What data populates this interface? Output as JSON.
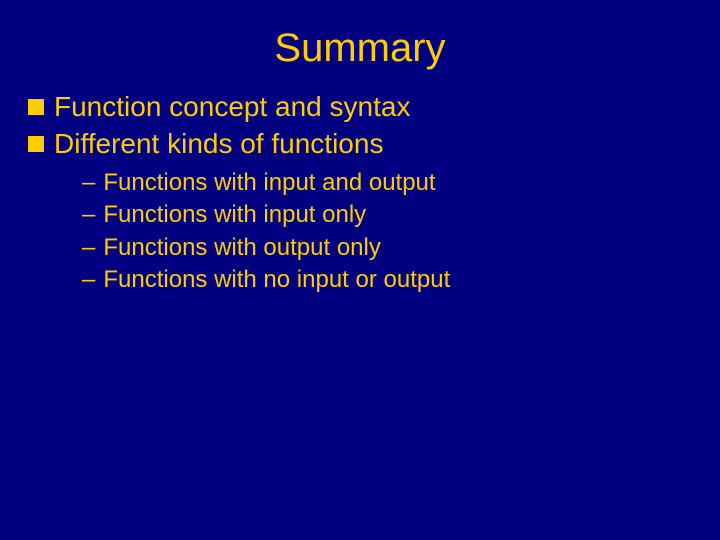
{
  "slide": {
    "title": "Summary",
    "background_color": "#000080",
    "title_color": "#ffcc00",
    "title_fontsize": 40,
    "body_color": "#ffcc00",
    "level1_fontsize": 28,
    "level2_fontsize": 24,
    "bullets": [
      {
        "text": "Function concept and syntax",
        "children": []
      },
      {
        "text": "Different kinds of functions",
        "children": [
          {
            "text": "Functions with input and output"
          },
          {
            "text": "Functions with input only"
          },
          {
            "text": "Functions with output only"
          },
          {
            "text": "Functions with no input or output"
          }
        ]
      }
    ]
  }
}
